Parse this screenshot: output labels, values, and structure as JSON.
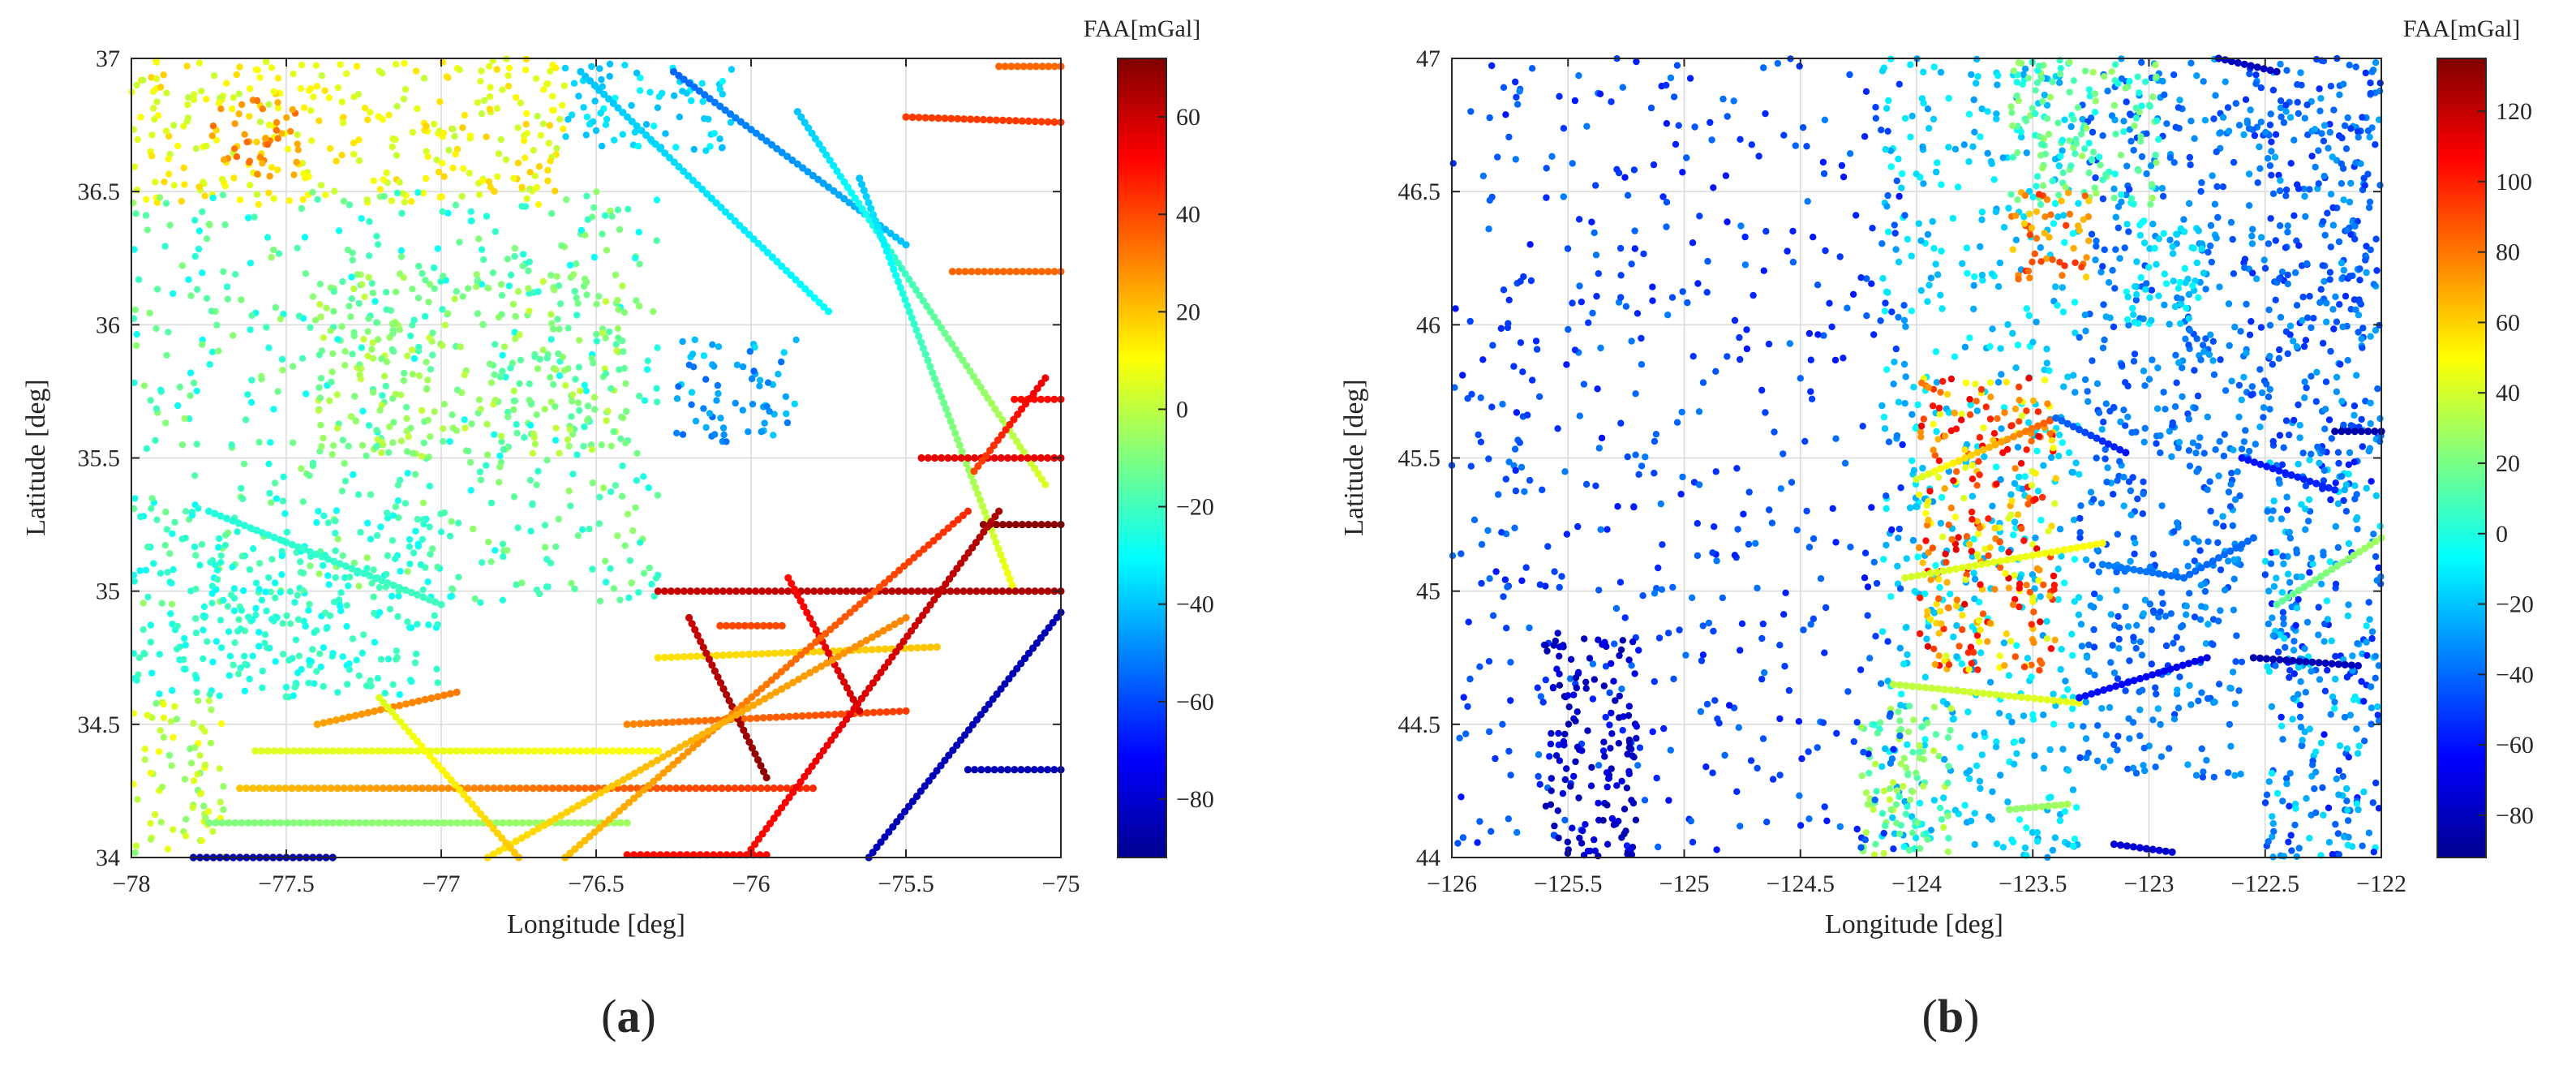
{
  "colormap": "jet",
  "colormap_stops": [
    "#00008f",
    "#0000ff",
    "#007fff",
    "#00ffff",
    "#7fff7f",
    "#ffff00",
    "#ff7f00",
    "#ff0000",
    "#800000"
  ],
  "panel_labels": [
    {
      "open": "(",
      "letter": "a",
      "close": ")"
    },
    {
      "open": "(",
      "letter": "b",
      "close": ")"
    }
  ],
  "chart_data": [
    {
      "type": "scatter",
      "xlabel": "Longitude [deg]",
      "ylabel": "Latitude [deg]",
      "colorbar_label": "FAA[mGal]",
      "xlim": [
        -78,
        -75
      ],
      "ylim": [
        34,
        37
      ],
      "grid": true,
      "x_ticks": [
        -78,
        -77.5,
        -77,
        -76.5,
        -76,
        -75.5,
        -75
      ],
      "x_tick_labels": [
        "−78",
        "−77.5",
        "−77",
        "−76.5",
        "−76",
        "−75.5",
        "−75"
      ],
      "y_ticks": [
        34,
        34.5,
        35,
        35.5,
        36,
        36.5,
        37
      ],
      "y_tick_labels": [
        "34",
        "34.5",
        "35",
        "35.5",
        "36",
        "36.5",
        "37"
      ],
      "clim": [
        -92,
        72
      ],
      "colorbar_ticks": [
        -80,
        -60,
        -40,
        -20,
        0,
        20,
        40,
        60
      ],
      "colorbar_tick_labels": [
        "−80",
        "−60",
        "−40",
        "−20",
        "0",
        "20",
        "40",
        "60"
      ],
      "scattered_groups": [
        {
          "x": [
            -78,
            -76.6
          ],
          "y": [
            36.45,
            37
          ],
          "faa": [
            0,
            18
          ]
        },
        {
          "x": [
            -77.75,
            -77.45
          ],
          "y": [
            36.55,
            36.85
          ],
          "faa": [
            22,
            35
          ]
        },
        {
          "x": [
            -76.6,
            -76.05
          ],
          "y": [
            36.65,
            36.98
          ],
          "faa": [
            -42,
            -30
          ]
        },
        {
          "x": [
            -78,
            -76.3
          ],
          "y": [
            34.95,
            36.5
          ],
          "faa": [
            -30,
            -5
          ]
        },
        {
          "x": [
            -77.4,
            -76.4
          ],
          "y": [
            35.5,
            36.2
          ],
          "faa": [
            -18,
            2
          ]
        },
        {
          "x": [
            -76.25,
            -75.85
          ],
          "y": [
            35.55,
            35.95
          ],
          "faa": [
            -55,
            -35
          ]
        },
        {
          "x": [
            -78,
            -77.0
          ],
          "y": [
            34.6,
            35.3
          ],
          "faa": [
            -30,
            -18
          ]
        },
        {
          "x": [
            -78,
            -77.7
          ],
          "y": [
            34.0,
            34.6
          ],
          "faa": [
            -10,
            10
          ]
        }
      ],
      "tracks": [
        {
          "start": [
            -76.55,
            36.95
          ],
          "end": [
            -75.75,
            36.05
          ],
          "faa": [
            -40,
            -30
          ]
        },
        {
          "start": [
            -76.25,
            36.95
          ],
          "end": [
            -75.5,
            36.3
          ],
          "faa": [
            -55,
            -40
          ]
        },
        {
          "start": [
            -75.85,
            36.8
          ],
          "end": [
            -75.05,
            35.4
          ],
          "faa": [
            -40,
            5
          ]
        },
        {
          "start": [
            -75.65,
            36.55
          ],
          "end": [
            -75.15,
            35.0
          ],
          "faa": [
            -40,
            10
          ]
        },
        {
          "start": [
            -75.2,
            36.97
          ],
          "end": [
            -75.0,
            36.97
          ],
          "faa": [
            35,
            35
          ]
        },
        {
          "start": [
            -75.5,
            36.78
          ],
          "end": [
            -75.0,
            36.76
          ],
          "faa": [
            42,
            42
          ]
        },
        {
          "start": [
            -75.35,
            36.2
          ],
          "end": [
            -75.0,
            36.2
          ],
          "faa": [
            35,
            35
          ]
        },
        {
          "start": [
            -75.45,
            35.5
          ],
          "end": [
            -75.0,
            35.5
          ],
          "faa": [
            55,
            55
          ]
        },
        {
          "start": [
            -75.25,
            35.25
          ],
          "end": [
            -75.0,
            35.25
          ],
          "faa": [
            70,
            70
          ]
        },
        {
          "start": [
            -76.3,
            35.0
          ],
          "end": [
            -75.0,
            35.0
          ],
          "faa": [
            60,
            65
          ]
        },
        {
          "start": [
            -76.1,
            34.87
          ],
          "end": [
            -75.9,
            34.87
          ],
          "faa": [
            40,
            40
          ]
        },
        {
          "start": [
            -77.4,
            34.5
          ],
          "end": [
            -76.95,
            34.62
          ],
          "faa": [
            25,
            32
          ]
        },
        {
          "start": [
            -77.6,
            34.4
          ],
          "end": [
            -76.3,
            34.4
          ],
          "faa": [
            5,
            10
          ]
        },
        {
          "start": [
            -77.65,
            34.26
          ],
          "end": [
            -75.8,
            34.26
          ],
          "faa": [
            20,
            45
          ]
        },
        {
          "start": [
            -77.75,
            34.13
          ],
          "end": [
            -76.4,
            34.13
          ],
          "faa": [
            -10,
            -5
          ]
        },
        {
          "start": [
            -76.4,
            34.01
          ],
          "end": [
            -75.95,
            34.01
          ],
          "faa": [
            50,
            50
          ]
        },
        {
          "start": [
            -77.8,
            34.0
          ],
          "end": [
            -77.35,
            34.0
          ],
          "faa": [
            -85,
            -85
          ]
        },
        {
          "start": [
            -76.3,
            34.75
          ],
          "end": [
            -75.4,
            34.79
          ],
          "faa": [
            15,
            20
          ]
        },
        {
          "start": [
            -76.4,
            34.5
          ],
          "end": [
            -75.5,
            34.55
          ],
          "faa": [
            30,
            42
          ]
        },
        {
          "start": [
            -75.62,
            34.0
          ],
          "end": [
            -75.0,
            34.92
          ],
          "faa": [
            -85,
            -85
          ]
        },
        {
          "start": [
            -75.3,
            34.33
          ],
          "end": [
            -75.0,
            34.33
          ],
          "faa": [
            -85,
            -85
          ]
        },
        {
          "start": [
            -76.2,
            34.9
          ],
          "end": [
            -75.95,
            34.3
          ],
          "faa": [
            60,
            70
          ]
        },
        {
          "start": [
            -75.88,
            35.05
          ],
          "end": [
            -75.65,
            34.55
          ],
          "faa": [
            50,
            60
          ]
        },
        {
          "start": [
            -76.6,
            34.0
          ],
          "end": [
            -75.3,
            35.3
          ],
          "faa": [
            20,
            45
          ]
        },
        {
          "start": [
            -76.0,
            34.03
          ],
          "end": [
            -75.2,
            35.3
          ],
          "faa": [
            50,
            65
          ]
        },
        {
          "start": [
            -76.85,
            34.0
          ],
          "end": [
            -75.5,
            34.9
          ],
          "faa": [
            15,
            30
          ]
        },
        {
          "start": [
            -77.2,
            34.6
          ],
          "end": [
            -76.75,
            34.0
          ],
          "faa": [
            5,
            20
          ]
        },
        {
          "start": [
            -77.75,
            35.3
          ],
          "end": [
            -77.0,
            34.95
          ],
          "faa": [
            -25,
            -20
          ]
        },
        {
          "start": [
            -75.15,
            35.72
          ],
          "end": [
            -75.0,
            35.72
          ],
          "faa": [
            50,
            50
          ]
        },
        {
          "start": [
            -75.28,
            35.45
          ],
          "end": [
            -75.05,
            35.8
          ],
          "faa": [
            40,
            55
          ]
        }
      ]
    },
    {
      "type": "scatter",
      "xlabel": "Longitude [deg]",
      "ylabel": "Latitude [deg]",
      "colorbar_label": "FAA[mGal]",
      "xlim": [
        -126,
        -122
      ],
      "ylim": [
        44,
        47
      ],
      "grid": true,
      "x_ticks": [
        -126,
        -125.5,
        -125,
        -124.5,
        -124,
        -123.5,
        -123,
        -122.5,
        -122
      ],
      "x_tick_labels": [
        "−126",
        "−125.5",
        "−125",
        "−124.5",
        "−124",
        "−123.5",
        "−123",
        "−122.5",
        "−122"
      ],
      "y_ticks": [
        44,
        44.5,
        45,
        45.5,
        46,
        46.5,
        47
      ],
      "y_tick_labels": [
        "44",
        "44.5",
        "45",
        "45.5",
        "46",
        "46.5",
        "47"
      ],
      "clim": [
        -92,
        135
      ],
      "colorbar_ticks": [
        -80,
        -60,
        -40,
        -20,
        0,
        20,
        40,
        60,
        80,
        100,
        120
      ],
      "colorbar_tick_labels": [
        "−80",
        "−60",
        "−40",
        "−20",
        "0",
        "20",
        "40",
        "60",
        "80",
        "100",
        "120"
      ],
      "scattered_groups": [
        {
          "x": [
            -124.15,
            -123.3
          ],
          "y": [
            44.0,
            47.0
          ],
          "faa": [
            -30,
            -5
          ]
        },
        {
          "x": [
            -123.3,
            -122.6
          ],
          "y": [
            44.3,
            47.0
          ],
          "faa": [
            -50,
            -25
          ]
        },
        {
          "x": [
            -123.6,
            -122.95
          ],
          "y": [
            46.45,
            47.0
          ],
          "faa": [
            -5,
            30
          ]
        },
        {
          "x": [
            -123.1,
            -122.75
          ],
          "y": [
            46.0,
            46.4
          ],
          "faa": [
            -20,
            -5
          ]
        },
        {
          "x": [
            -122.5,
            -122.0
          ],
          "y": [
            44.0,
            45.5
          ],
          "faa": [
            -60,
            -10
          ]
        },
        {
          "x": [
            -122.6,
            -122.0
          ],
          "y": [
            45.5,
            47.0
          ],
          "faa": [
            -55,
            -25
          ]
        },
        {
          "x": [
            -123.6,
            -123.25
          ],
          "y": [
            46.15,
            46.5
          ],
          "faa": [
            60,
            100
          ]
        },
        {
          "x": [
            -124.0,
            -123.4
          ],
          "y": [
            44.7,
            45.8
          ],
          "faa": [
            40,
            115
          ]
        },
        {
          "x": [
            -124.25,
            -123.85
          ],
          "y": [
            44.0,
            44.6
          ],
          "faa": [
            0,
            40
          ]
        },
        {
          "x": [
            -126.0,
            -124.05
          ],
          "y": [
            44.0,
            47.0
          ],
          "faa": [
            -60,
            -35
          ]
        },
        {
          "x": [
            -125.6,
            -125.2
          ],
          "y": [
            44.0,
            44.85
          ],
          "faa": [
            -85,
            -70
          ]
        }
      ],
      "tracks": [
        {
          "start": [
            -124.0,
            45.42
          ],
          "end": [
            -123.4,
            45.65
          ],
          "faa": [
            40,
            90
          ]
        },
        {
          "start": [
            -123.4,
            45.65
          ],
          "end": [
            -123.1,
            45.52
          ],
          "faa": [
            -40,
            -60
          ]
        },
        {
          "start": [
            -124.05,
            45.05
          ],
          "end": [
            -123.2,
            45.18
          ],
          "faa": [
            40,
            50
          ]
        },
        {
          "start": [
            -123.2,
            45.1
          ],
          "end": [
            -122.85,
            45.05
          ],
          "faa": [
            -35,
            -40
          ]
        },
        {
          "start": [
            -122.85,
            45.05
          ],
          "end": [
            -122.55,
            45.2
          ],
          "faa": [
            -40,
            -40
          ]
        },
        {
          "start": [
            -124.1,
            44.65
          ],
          "end": [
            -123.3,
            44.58
          ],
          "faa": [
            35,
            45
          ]
        },
        {
          "start": [
            -123.3,
            44.6
          ],
          "end": [
            -122.75,
            44.75
          ],
          "faa": [
            -60,
            -70
          ]
        },
        {
          "start": [
            -122.6,
            45.5
          ],
          "end": [
            -122.2,
            45.38
          ],
          "faa": [
            -60,
            -55
          ]
        },
        {
          "start": [
            -122.55,
            44.75
          ],
          "end": [
            -122.1,
            44.72
          ],
          "faa": [
            -85,
            -80
          ]
        },
        {
          "start": [
            -122.45,
            44.95
          ],
          "end": [
            -122.0,
            45.2
          ],
          "faa": [
            15,
            30
          ]
        },
        {
          "start": [
            -123.15,
            44.05
          ],
          "end": [
            -122.9,
            44.02
          ],
          "faa": [
            -75,
            -75
          ]
        },
        {
          "start": [
            -123.6,
            44.18
          ],
          "end": [
            -123.35,
            44.2
          ],
          "faa": [
            25,
            30
          ]
        },
        {
          "start": [
            -122.2,
            45.6
          ],
          "end": [
            -122.0,
            45.6
          ],
          "faa": [
            -85,
            -85
          ]
        },
        {
          "start": [
            -122.7,
            47.0
          ],
          "end": [
            -122.45,
            46.95
          ],
          "faa": [
            -80,
            -80
          ]
        }
      ]
    }
  ]
}
